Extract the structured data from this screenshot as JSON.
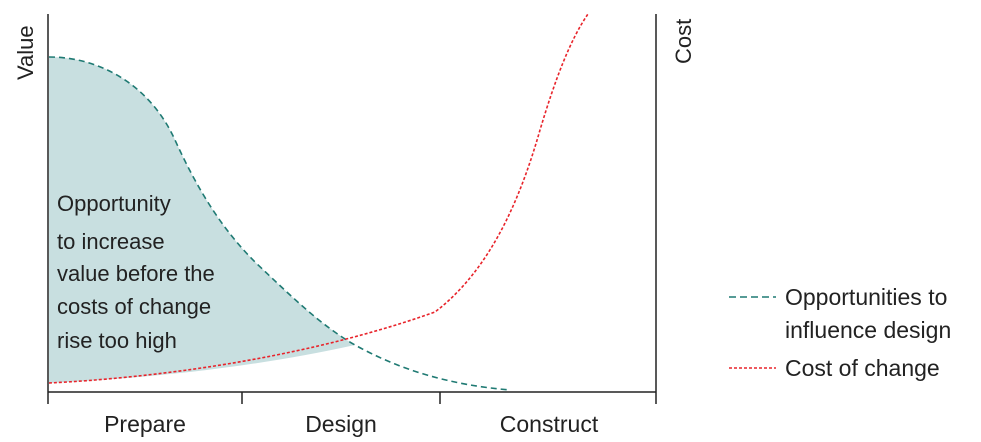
{
  "axes": {
    "left_label": "Value",
    "right_label": "Cost"
  },
  "phases": [
    "Prepare",
    "Design",
    "Construct"
  ],
  "annotation": {
    "lines": [
      "Opportunity",
      "to increase",
      "value before the",
      "costs of change",
      "rise too high"
    ]
  },
  "legend": {
    "opportunities": "Opportunities to influence design",
    "opportunities_lines": [
      "Opportunities to",
      "influence design"
    ],
    "cost": "Cost of change"
  },
  "colors": {
    "opportunity_curve": "#1f7a73",
    "opportunity_fill": "#c8dfe0",
    "cost_curve": "#e8242b",
    "axis": "#222222"
  }
}
